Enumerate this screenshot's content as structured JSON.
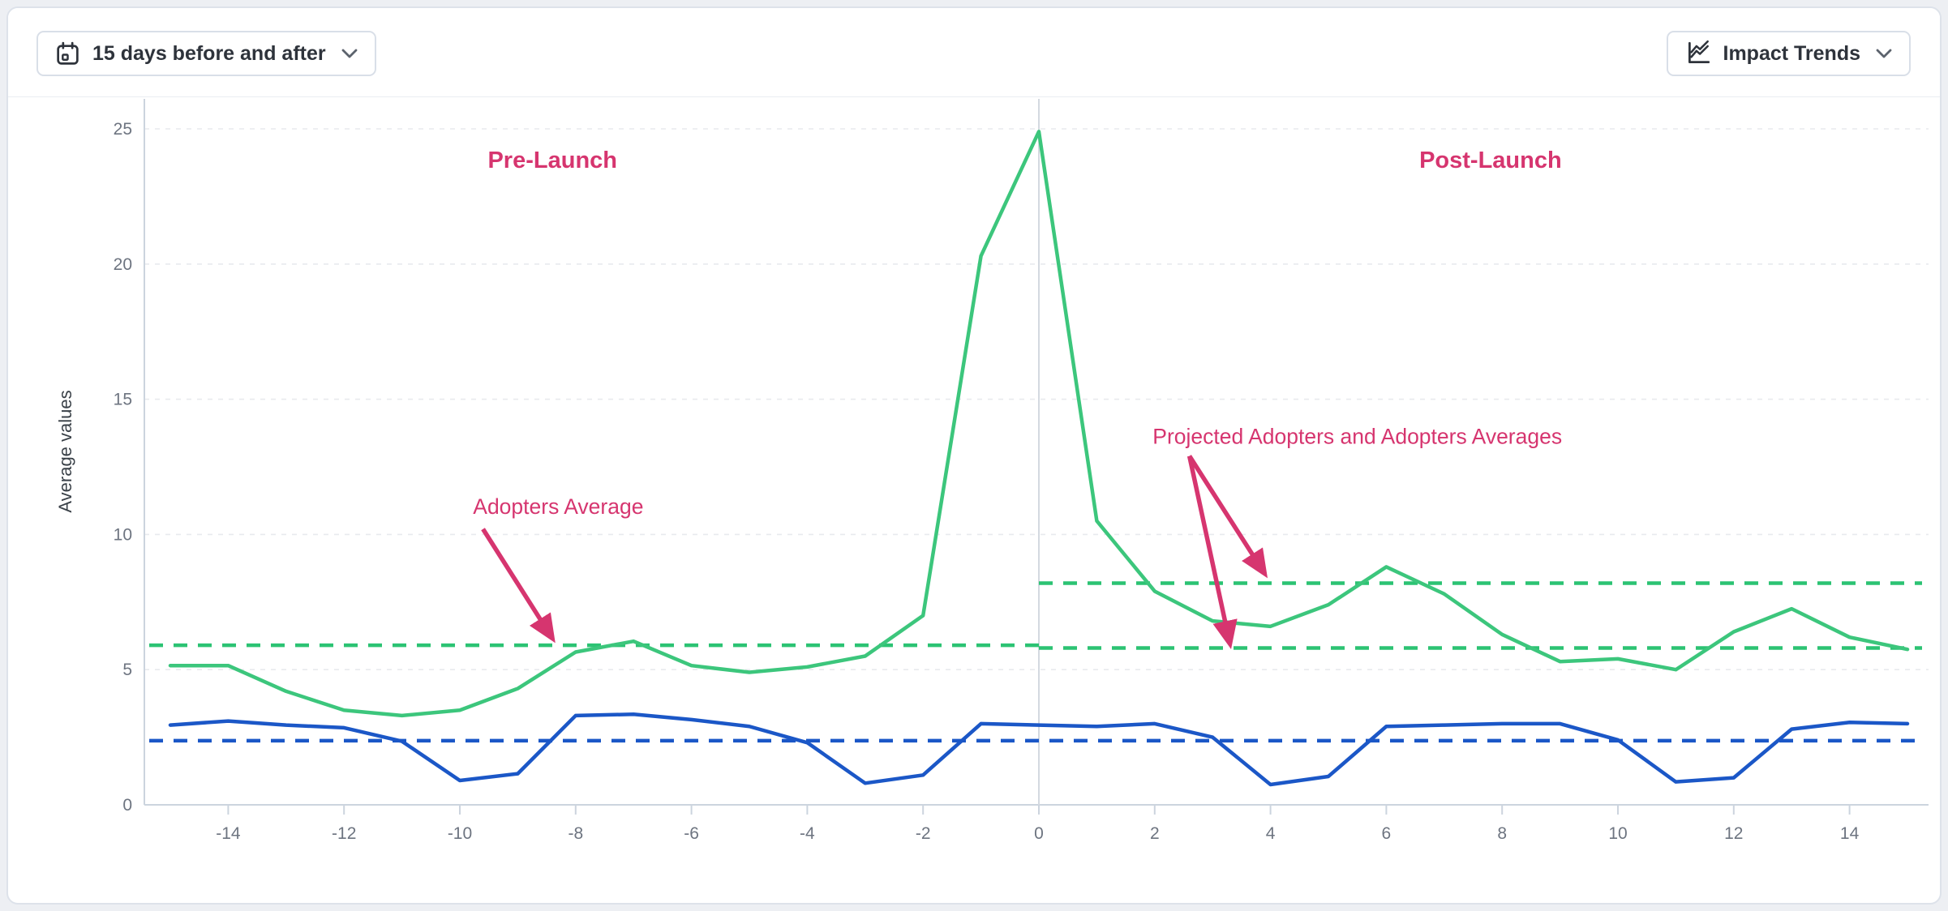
{
  "toolbar": {
    "date_range_label": "15 days before and after",
    "view_label": "Impact Trends"
  },
  "chart_data": {
    "type": "line",
    "title": "",
    "xlabel": "",
    "ylabel": "Average values",
    "x_axis": {
      "min": -15,
      "max": 15,
      "ticks": [
        -14,
        -12,
        -10,
        -8,
        -6,
        -4,
        -2,
        0,
        2,
        4,
        6,
        8,
        10,
        12,
        14
      ]
    },
    "y_axis": {
      "min": 0,
      "max": 25,
      "ticks": [
        0,
        5,
        10,
        15,
        20,
        25
      ]
    },
    "grid": true,
    "legend": "none",
    "launch_line_x": 0,
    "x": [
      -15,
      -14,
      -13,
      -12,
      -11,
      -10,
      -9,
      -8,
      -7,
      -6,
      -5,
      -4,
      -3,
      -2,
      -1,
      0,
      1,
      2,
      3,
      4,
      5,
      6,
      7,
      8,
      9,
      10,
      11,
      12,
      13,
      14,
      15
    ],
    "series": [
      {
        "name": "green",
        "color": "#3cc67c",
        "values": [
          5.15,
          5.15,
          4.2,
          3.5,
          3.3,
          3.5,
          4.3,
          5.65,
          6.05,
          5.15,
          4.9,
          5.1,
          5.5,
          7.0,
          20.3,
          24.9,
          10.5,
          7.9,
          6.8,
          6.6,
          7.4,
          8.8,
          7.8,
          6.3,
          5.3,
          5.4,
          5.0,
          6.4,
          7.25,
          6.2,
          5.75
        ]
      },
      {
        "name": "blue",
        "color": "#1b57c7",
        "values": [
          2.95,
          3.1,
          2.95,
          2.85,
          2.35,
          0.9,
          1.15,
          3.3,
          3.35,
          3.15,
          2.9,
          2.3,
          0.8,
          1.1,
          3.0,
          2.95,
          2.9,
          3.0,
          2.5,
          0.75,
          1.05,
          2.9,
          2.95,
          3.0,
          3.0,
          2.4,
          0.85,
          1.0,
          2.8,
          3.05,
          3.0
        ]
      }
    ],
    "average_lines": [
      {
        "name": "pre-launch-adopters-average",
        "value": 5.9,
        "x_range": [
          -15.4,
          0
        ],
        "color": "#2cc373"
      },
      {
        "name": "post-launch-projected-average-upper",
        "value": 8.2,
        "x_range": [
          0,
          15.3
        ],
        "color": "#2cc373"
      },
      {
        "name": "post-launch-adopters-average-lower",
        "value": 5.8,
        "x_range": [
          0,
          15.3
        ],
        "color": "#2cc373"
      },
      {
        "name": "blue-series-average",
        "value": 2.37,
        "x_range": [
          -15.4,
          15.3
        ],
        "color": "#1b57c7"
      }
    ],
    "annotation_color": "#d6356f",
    "annotations": [
      {
        "text": "Pre-Launch",
        "x": -8.4,
        "y": 23.8,
        "bold": true
      },
      {
        "text": "Post-Launch",
        "x": 7.8,
        "y": 23.8,
        "bold": true
      },
      {
        "text": "Adopters Average",
        "x": -8.3,
        "y": 11.0,
        "bold": false
      },
      {
        "text": "Projected Adopters and Adopters Averages",
        "x": 5.5,
        "y": 13.6,
        "bold": false
      }
    ],
    "arrows": [
      {
        "from": [
          -9.6,
          10.2
        ],
        "to": [
          -8.4,
          6.15
        ]
      },
      {
        "from": [
          2.6,
          12.9
        ],
        "to": [
          3.9,
          8.55
        ]
      },
      {
        "from": [
          2.6,
          12.9
        ],
        "to": [
          3.3,
          5.95
        ]
      }
    ]
  },
  "colors": {
    "grid": "#e8eaee",
    "spine": "#ccd4de",
    "launch_line": "#d4d9e0",
    "tick_label": "#6d7480",
    "axis_title": "#3a4148"
  }
}
